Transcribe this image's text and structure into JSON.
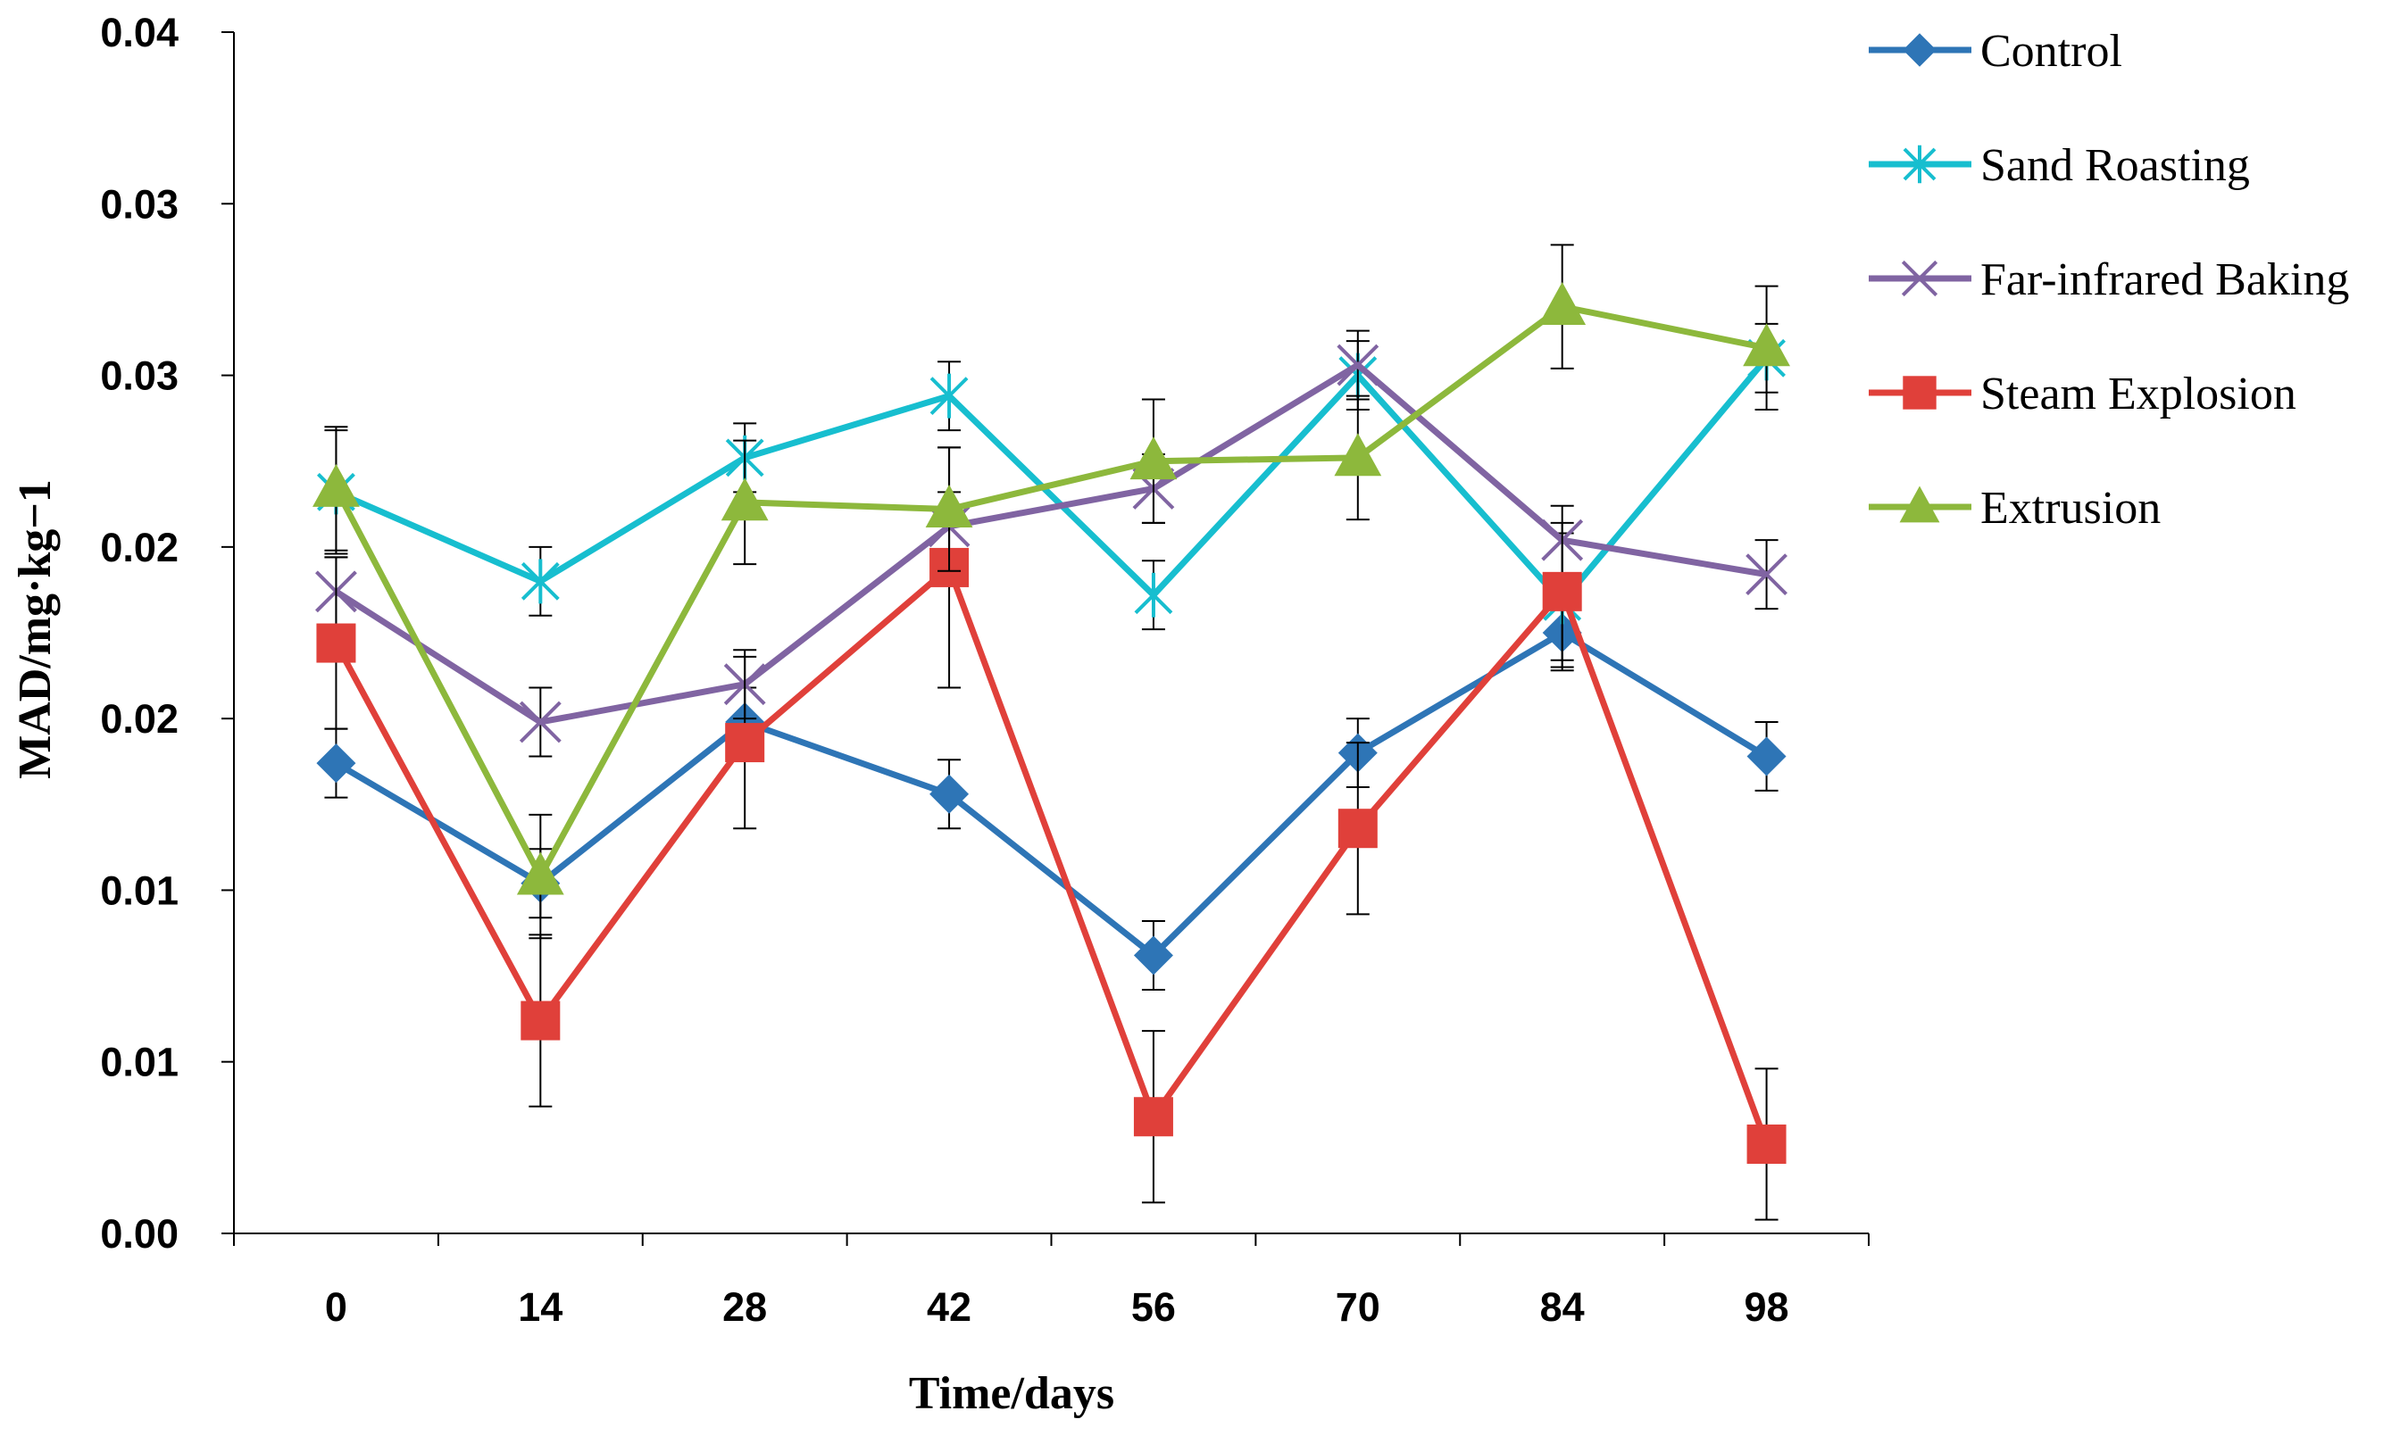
{
  "chart_data": {
    "type": "line",
    "title": "",
    "xlabel": "Time/days",
    "ylabel": "MAD/mg·kg−1",
    "categories": [
      "0",
      "14",
      "28",
      "42",
      "56",
      "70",
      "84",
      "98"
    ],
    "y_tick_labels": [
      "0.00",
      "0.01",
      "0.01",
      "0.02",
      "0.02",
      "0.03",
      "0.03",
      "0.04"
    ],
    "ylim": [
      0,
      0.035
    ],
    "grid": false,
    "legend_position": "right",
    "error_bars": true,
    "series": [
      {
        "name": "Control",
        "color": "#2E75B6",
        "marker": "diamond",
        "values": [
          0.0137,
          0.0102,
          0.0149,
          0.0128,
          0.0081,
          0.014,
          0.0175,
          0.0139
        ],
        "errors": [
          0.001,
          0.001,
          0.001,
          0.001,
          0.001,
          0.001,
          0.001,
          0.001
        ]
      },
      {
        "name": "Sand Roasting",
        "color": "#17BECF",
        "marker": "asterisk",
        "values": [
          0.0216,
          0.019,
          0.0226,
          0.0244,
          0.0186,
          0.025,
          0.0184,
          0.0255
        ],
        "errors": [
          0.0018,
          0.001,
          0.001,
          0.001,
          0.001,
          0.001,
          0.002,
          0.001
        ]
      },
      {
        "name": "Far-infrared Baking",
        "color": "#8064A2",
        "marker": "x",
        "values": [
          0.0187,
          0.0149,
          0.016,
          0.0206,
          0.0217,
          0.0253,
          0.0202,
          0.0192
        ],
        "errors": [
          0.001,
          0.001,
          0.001,
          0.001,
          0.001,
          0.001,
          0.001,
          0.001
        ]
      },
      {
        "name": "Steam Explosion",
        "color": "#E0403A",
        "marker": "square",
        "values": [
          0.0172,
          0.0062,
          0.0143,
          0.0194,
          0.0034,
          0.0118,
          0.0187,
          0.0026
        ],
        "errors": [
          0.0025,
          0.0025,
          0.0025,
          0.0035,
          0.0025,
          0.0025,
          0.002,
          0.0022
        ]
      },
      {
        "name": "Extrusion",
        "color": "#8DB83C",
        "marker": "triangle",
        "values": [
          0.0217,
          0.0104,
          0.0213,
          0.0211,
          0.0225,
          0.0226,
          0.027,
          0.0258
        ],
        "errors": [
          0.0018,
          0.0018,
          0.0018,
          0.0018,
          0.0018,
          0.0018,
          0.0018,
          0.0018
        ]
      }
    ]
  }
}
